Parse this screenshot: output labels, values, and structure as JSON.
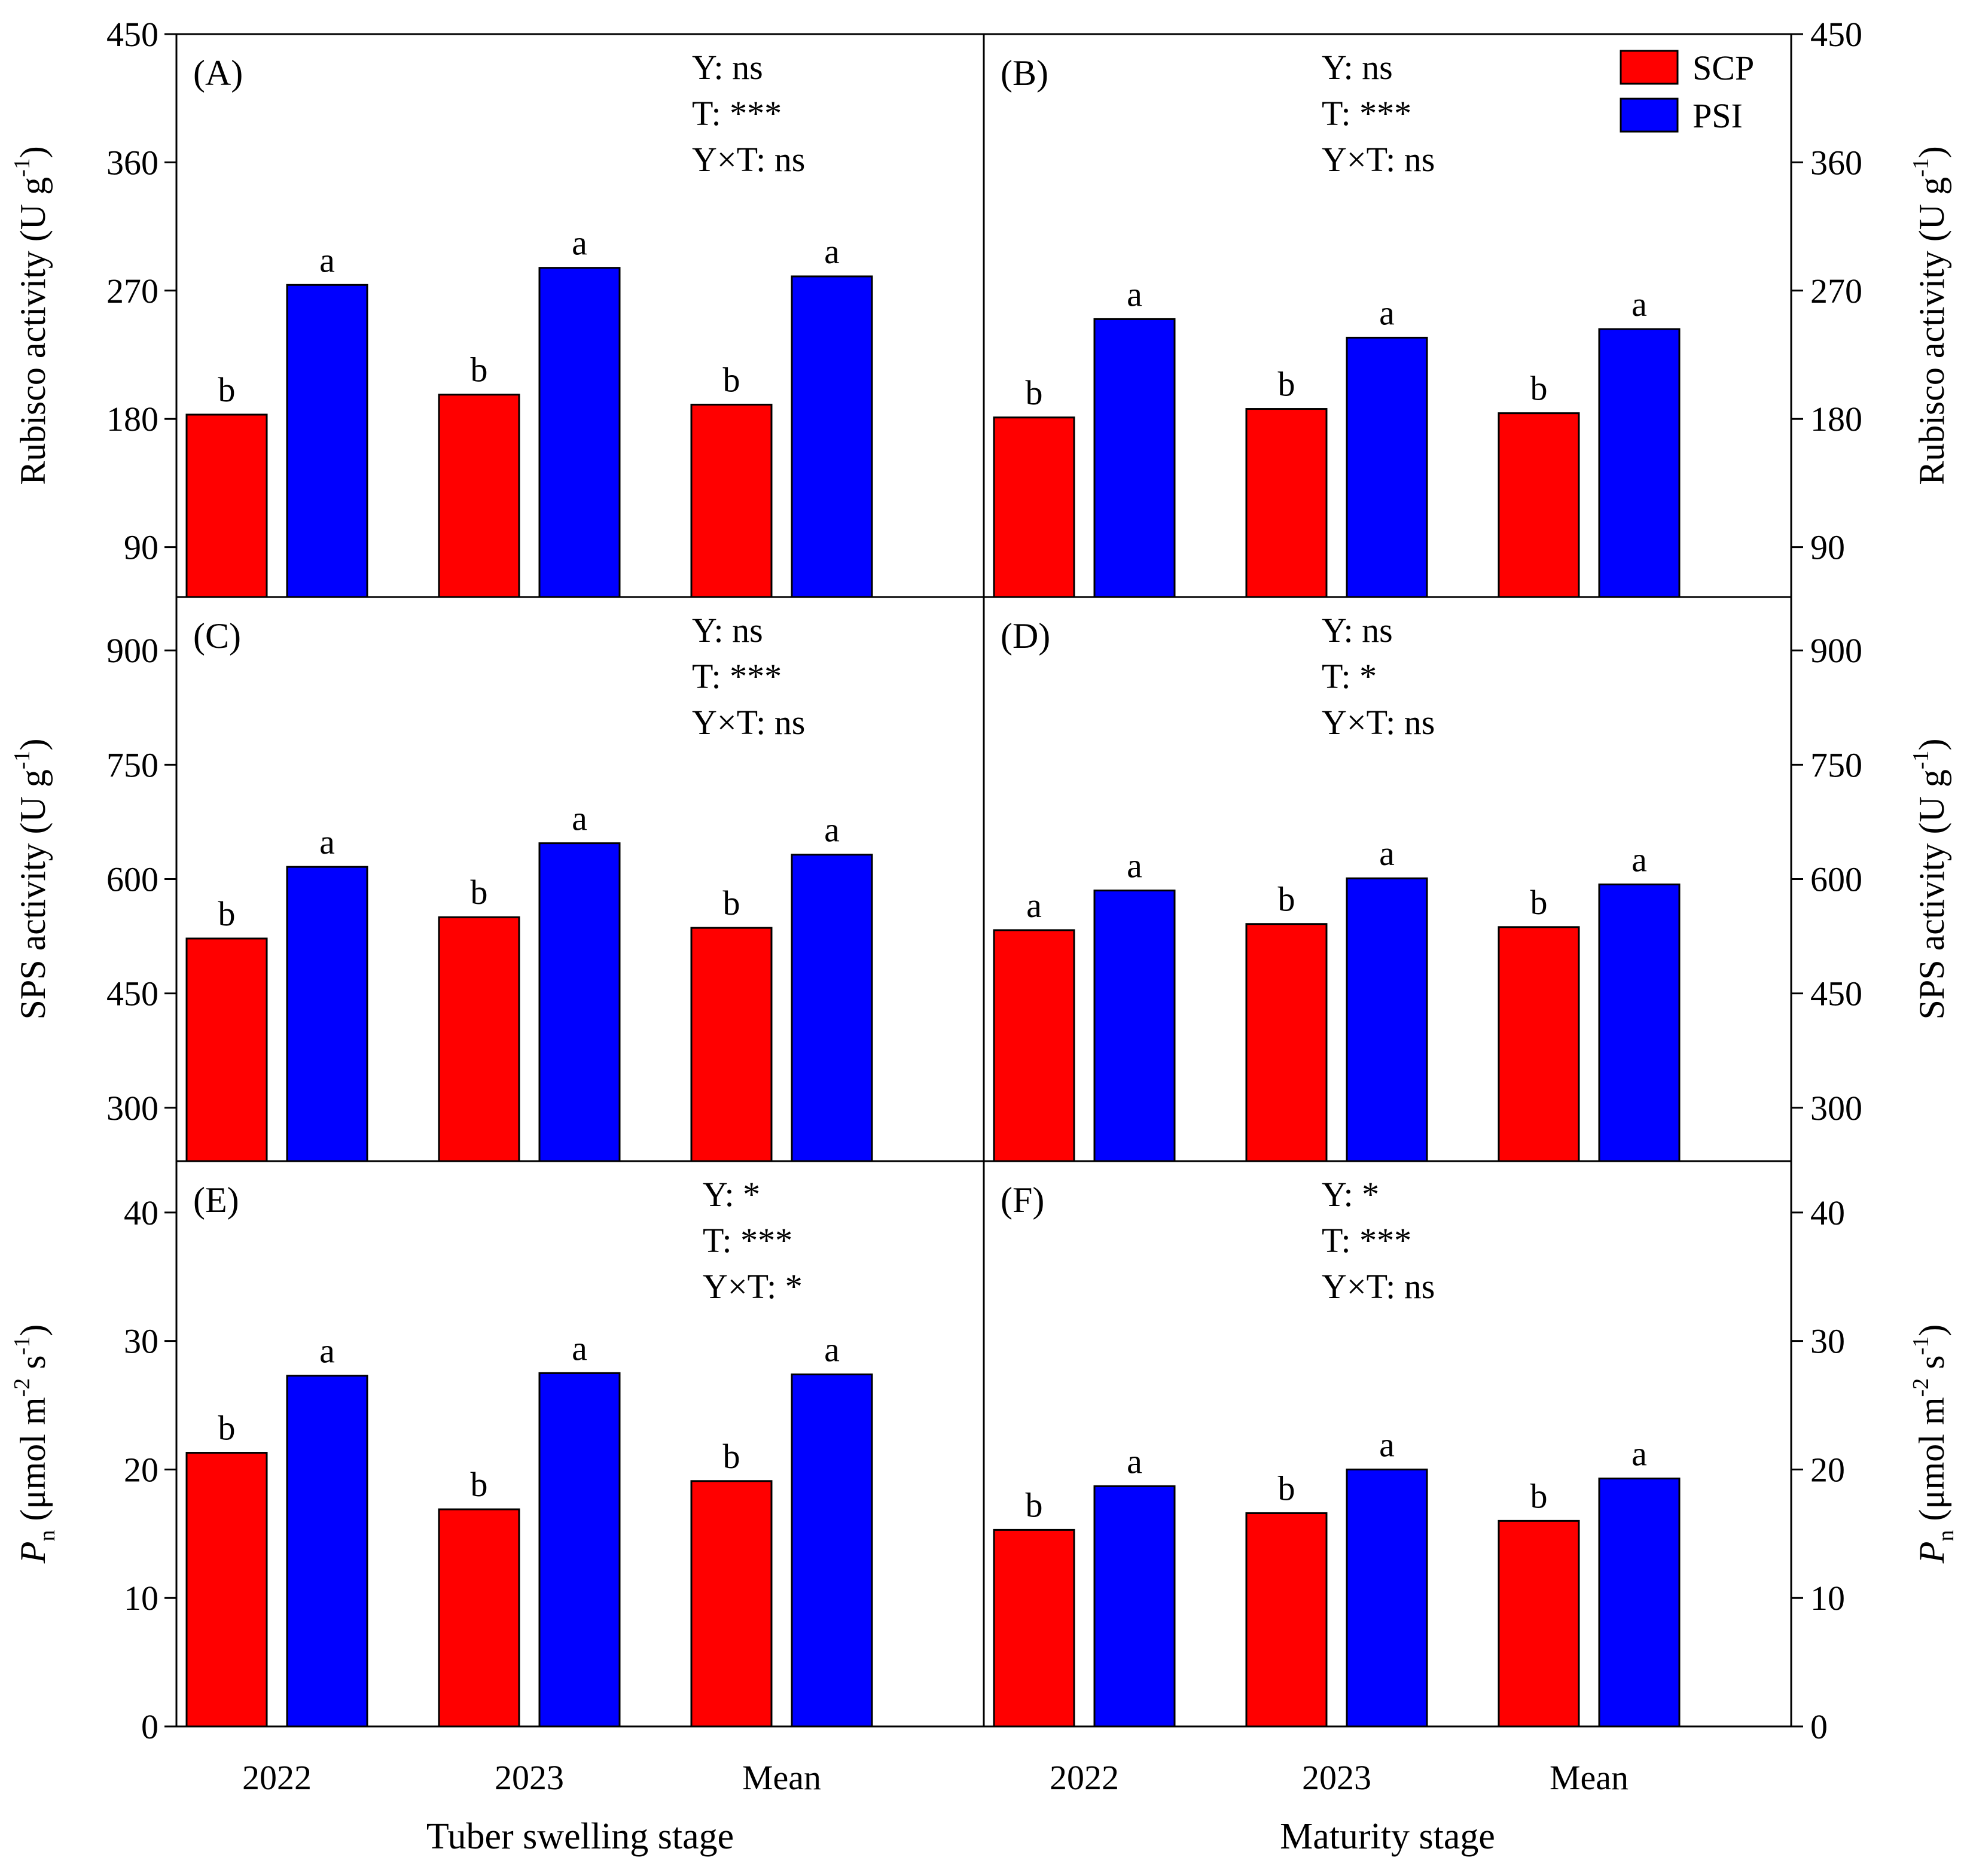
{
  "colors": {
    "SCP": "#ff0000",
    "PSI": "#0000ff",
    "axis": "#000000"
  },
  "legend": [
    {
      "name": "SCP",
      "color": "#ff0000"
    },
    {
      "name": "PSI",
      "color": "#0000ff"
    }
  ],
  "stages": [
    "Tuber swelling stage",
    "Maturity stage"
  ],
  "chart_data": [
    {
      "type": "bar",
      "panel": "(A)",
      "stage": "Tuber swelling stage",
      "ylabel_parts": [
        "Rubisco activity (U g",
        "-1",
        ")"
      ],
      "ylim": [
        55,
        450
      ],
      "yticks": [
        90,
        180,
        270,
        360,
        450
      ],
      "categories": [
        "2022",
        "2023",
        "Mean"
      ],
      "series": [
        {
          "name": "SCP",
          "values": [
            183,
            197,
            190
          ],
          "letters": [
            "b",
            "b",
            "b"
          ]
        },
        {
          "name": "PSI",
          "values": [
            274,
            286,
            280
          ],
          "letters": [
            "a",
            "a",
            "a"
          ]
        }
      ],
      "stats": [
        "Y: ns",
        "T: ***",
        "Y×T: ns"
      ]
    },
    {
      "type": "bar",
      "panel": "(B)",
      "stage": "Maturity stage",
      "ylabel_parts": [
        "Rubisco activity (U g",
        "-1",
        ")"
      ],
      "ylim": [
        55,
        450
      ],
      "yticks": [
        90,
        180,
        270,
        360,
        450
      ],
      "categories": [
        "2022",
        "2023",
        "Mean"
      ],
      "series": [
        {
          "name": "SCP",
          "values": [
            181,
            187,
            184
          ],
          "letters": [
            "b",
            "b",
            "b"
          ]
        },
        {
          "name": "PSI",
          "values": [
            250,
            237,
            243
          ],
          "letters": [
            "a",
            "a",
            "a"
          ]
        }
      ],
      "stats": [
        "Y: ns",
        "T: ***",
        "Y×T: ns"
      ]
    },
    {
      "type": "bar",
      "panel": "(C)",
      "stage": "Tuber swelling stage",
      "ylabel_parts": [
        "SPS activity (U g",
        "-1",
        ")"
      ],
      "ylim": [
        230,
        970
      ],
      "yticks": [
        300,
        450,
        600,
        750,
        900
      ],
      "categories": [
        "2022",
        "2023",
        "Mean"
      ],
      "series": [
        {
          "name": "SCP",
          "values": [
            522,
            550,
            536
          ],
          "letters": [
            "b",
            "b",
            "b"
          ]
        },
        {
          "name": "PSI",
          "values": [
            616,
            647,
            632
          ],
          "letters": [
            "a",
            "a",
            "a"
          ]
        }
      ],
      "stats": [
        "Y: ns",
        "T: ***",
        "Y×T: ns"
      ]
    },
    {
      "type": "bar",
      "panel": "(D)",
      "stage": "Maturity stage",
      "ylabel_parts": [
        "SPS activity (U g",
        "-1",
        ")"
      ],
      "ylim": [
        230,
        970
      ],
      "yticks": [
        300,
        450,
        600,
        750,
        900
      ],
      "categories": [
        "2022",
        "2023",
        "Mean"
      ],
      "series": [
        {
          "name": "SCP",
          "values": [
            533,
            541,
            537
          ],
          "letters": [
            "a",
            "b",
            "b"
          ]
        },
        {
          "name": "PSI",
          "values": [
            585,
            601,
            593
          ],
          "letters": [
            "a",
            "a",
            "a"
          ]
        }
      ],
      "stats": [
        "Y: ns",
        "T: *",
        "Y×T: ns"
      ]
    },
    {
      "type": "bar",
      "panel": "(E)",
      "stage": "Tuber swelling stage",
      "ylabel_parts": [
        "P",
        "n",
        " (μmol m",
        "-2",
        " s",
        "-1",
        ")"
      ],
      "ylim": [
        0,
        44
      ],
      "yticks": [
        0,
        10,
        20,
        30,
        40
      ],
      "categories": [
        "2022",
        "2023",
        "Mean"
      ],
      "series": [
        {
          "name": "SCP",
          "values": [
            21.3,
            16.9,
            19.1
          ],
          "letters": [
            "b",
            "b",
            "b"
          ]
        },
        {
          "name": "PSI",
          "values": [
            27.3,
            27.5,
            27.4
          ],
          "letters": [
            "a",
            "a",
            "a"
          ]
        }
      ],
      "stats": [
        "Y: *",
        "T: ***",
        "Y×T: *"
      ]
    },
    {
      "type": "bar",
      "panel": "(F)",
      "stage": "Maturity stage",
      "ylabel_parts": [
        "P",
        "n",
        " (μmol m",
        "-2",
        " s",
        "-1",
        ")"
      ],
      "ylim": [
        0,
        44
      ],
      "yticks": [
        0,
        10,
        20,
        30,
        40
      ],
      "categories": [
        "2022",
        "2023",
        "Mean"
      ],
      "series": [
        {
          "name": "SCP",
          "values": [
            15.3,
            16.6,
            16.0
          ],
          "letters": [
            "b",
            "b",
            "b"
          ]
        },
        {
          "name": "PSI",
          "values": [
            18.7,
            20.0,
            19.3
          ],
          "letters": [
            "a",
            "a",
            "a"
          ]
        }
      ],
      "stats": [
        "Y: *",
        "T: ***",
        "Y×T: ns"
      ]
    }
  ]
}
